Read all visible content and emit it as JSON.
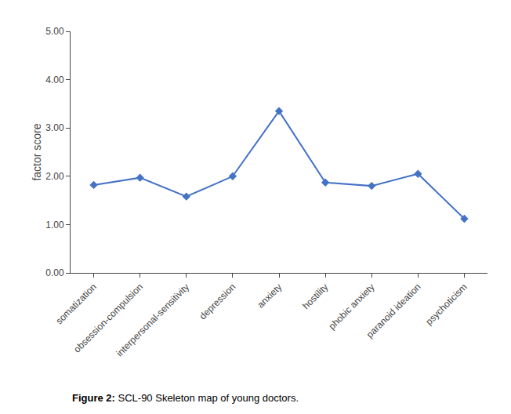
{
  "chart_data": {
    "type": "line",
    "categories": [
      "somatization",
      "obsession-compulsion",
      "interpersonal-sensitivity",
      "depression",
      "anxiety",
      "hostility",
      "phobic anxiety",
      "paranoid ideation",
      "psychoticism"
    ],
    "values": [
      1.82,
      1.97,
      1.58,
      2.0,
      3.35,
      1.87,
      1.8,
      2.05,
      1.12
    ],
    "color": "#4472C4",
    "marker": "diamond",
    "ylabel": "factor score",
    "ylim": [
      0,
      5.0
    ],
    "yticks": [
      {
        "value": 0,
        "label": "0.00"
      },
      {
        "value": 1,
        "label": "1.00"
      },
      {
        "value": 2,
        "label": "2.00"
      },
      {
        "value": 3,
        "label": "3.00"
      },
      {
        "value": 4,
        "label": "4.00"
      },
      {
        "value": 5,
        "label": "5.00"
      }
    ],
    "annotations": [
      "Figure 2:",
      "SCL-90 Skeleton map of young doctors."
    ],
    "grid": false
  }
}
